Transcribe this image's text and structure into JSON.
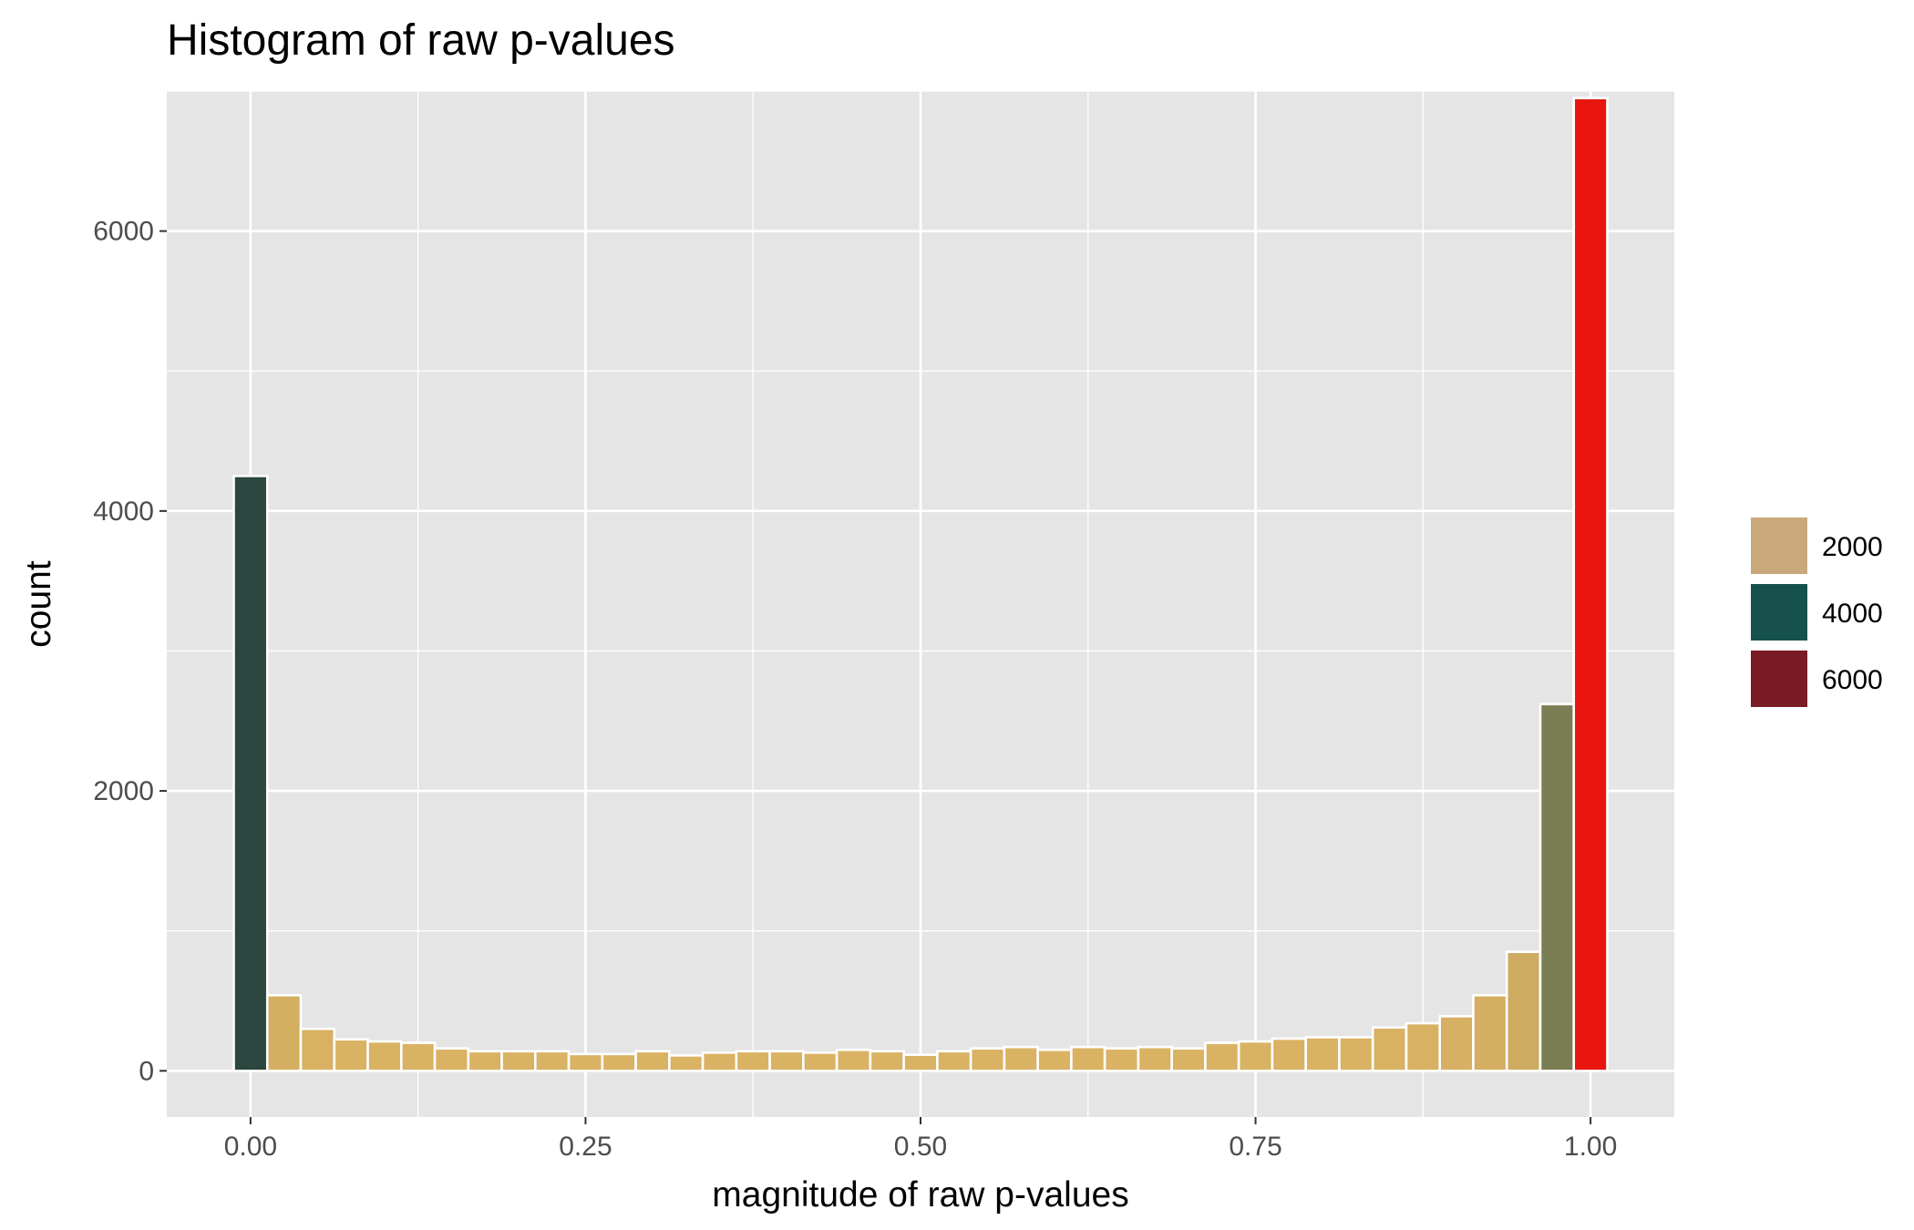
{
  "chart_data": {
    "type": "bar",
    "title": "Histogram of raw p-values",
    "xlabel": "magnitude of raw p-values",
    "ylabel": "count",
    "xlim": [
      -0.0625,
      1.0625
    ],
    "ylim": [
      -330,
      7000
    ],
    "x_ticks": [
      0.0,
      0.25,
      0.5,
      0.75,
      1.0
    ],
    "x_tick_labels": [
      "0.00",
      "0.25",
      "0.50",
      "0.75",
      "1.00"
    ],
    "y_ticks": [
      0,
      2000,
      4000,
      6000
    ],
    "y_tick_labels": [
      "0",
      "2000",
      "4000",
      "6000"
    ],
    "grid": true,
    "bin_width": 0.025,
    "bin_centers": [
      0.0,
      0.025,
      0.05,
      0.075,
      0.1,
      0.125,
      0.15,
      0.175,
      0.2,
      0.225,
      0.25,
      0.275,
      0.3,
      0.325,
      0.35,
      0.375,
      0.4,
      0.425,
      0.45,
      0.475,
      0.5,
      0.525,
      0.55,
      0.575,
      0.6,
      0.625,
      0.65,
      0.675,
      0.7,
      0.725,
      0.75,
      0.775,
      0.8,
      0.825,
      0.85,
      0.875,
      0.9,
      0.925,
      0.95,
      0.975,
      1.0
    ],
    "values": [
      4250,
      540,
      300,
      225,
      210,
      200,
      160,
      140,
      140,
      140,
      120,
      120,
      140,
      110,
      130,
      140,
      140,
      130,
      150,
      140,
      115,
      140,
      160,
      170,
      150,
      170,
      160,
      170,
      160,
      200,
      210,
      230,
      240,
      240,
      310,
      340,
      390,
      540,
      850,
      2620,
      6950
    ],
    "fill_scale": {
      "name": "count",
      "low_color": "#dab263",
      "mid_color": "#1b4a45",
      "high_color": "#e8160e"
    },
    "legend": {
      "placement": "right",
      "entries": [
        {
          "label": "2000",
          "color": "#c9a87c"
        },
        {
          "label": "4000",
          "color": "#17514b"
        },
        {
          "label": "6000",
          "color": "#7a1c24"
        }
      ]
    },
    "colors": {
      "panel_background": "#e5e5e5",
      "grid_line": "#ffffff",
      "bar_outline": "#ffffff",
      "tick_text": "#4d4d4d"
    }
  }
}
